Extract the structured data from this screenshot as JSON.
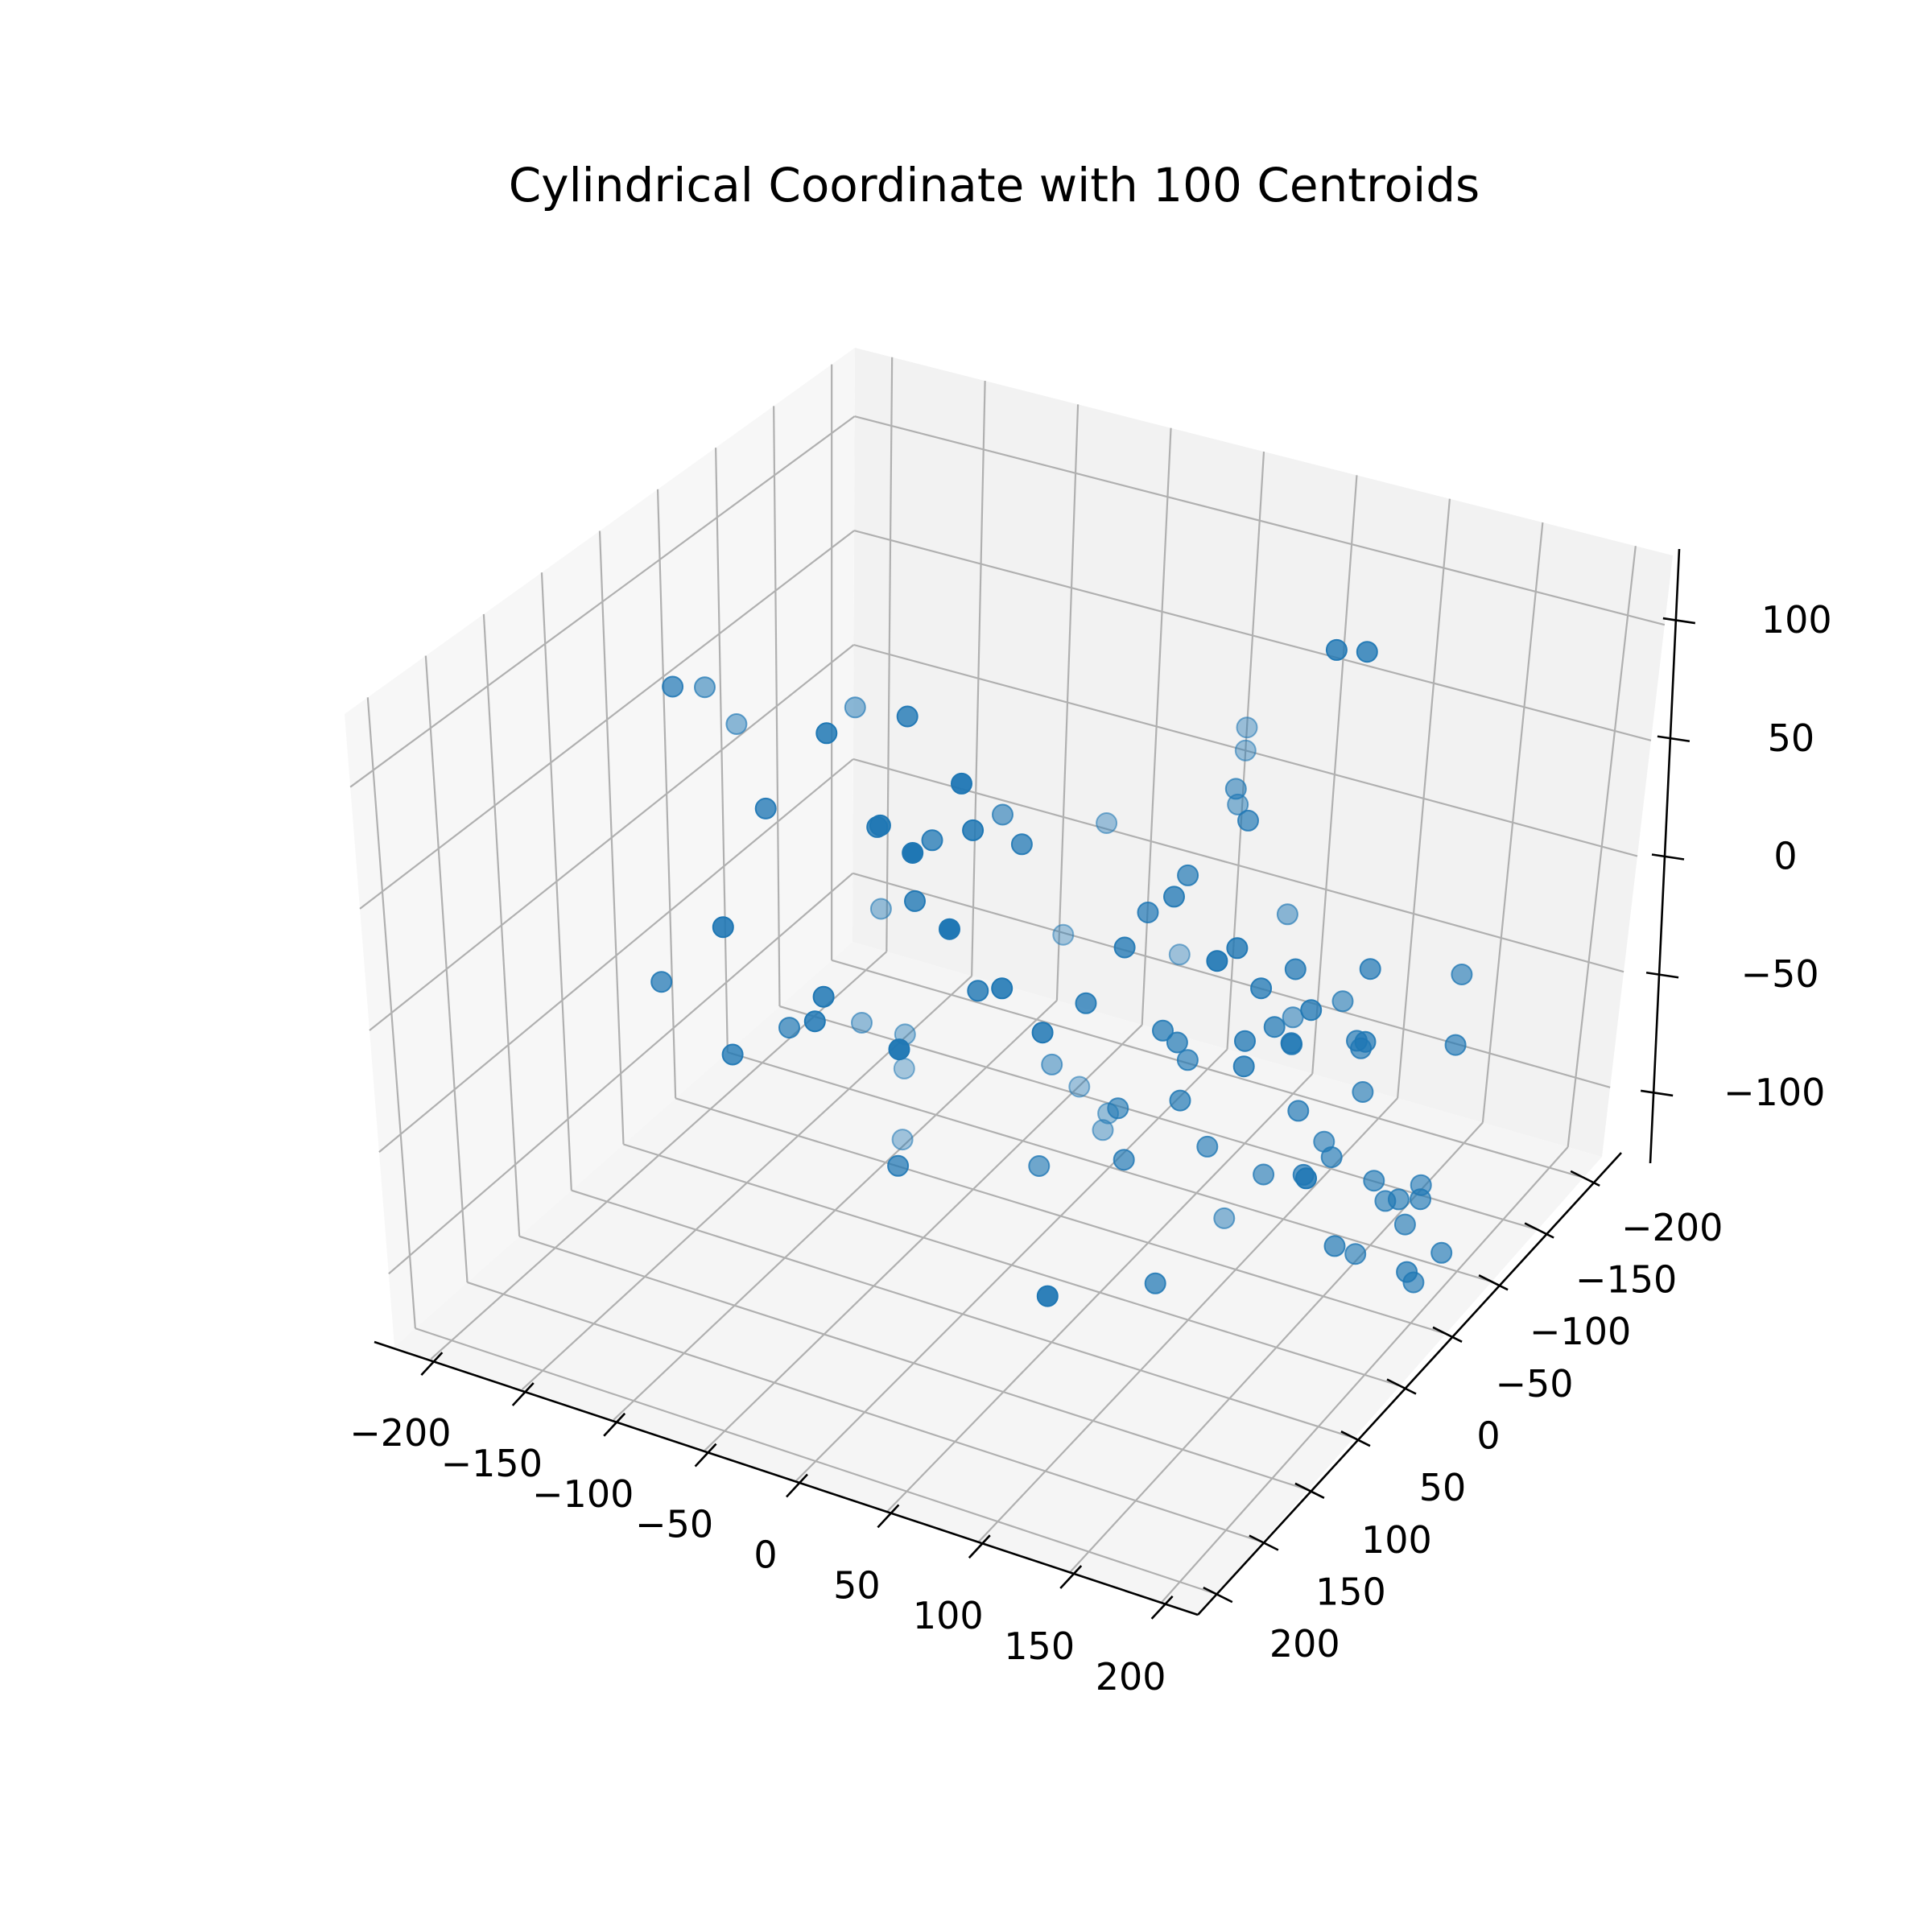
{
  "chart_data": {
    "type": "scatter",
    "projection": "3d",
    "title": "Cylindrical Coordinate with 100 Centroids",
    "xlabel": "",
    "ylabel": "",
    "zlabel": "",
    "xlim": [
      -220,
      220
    ],
    "ylim": [
      -220,
      220
    ],
    "zlim": [
      -130,
      130
    ],
    "xticks": [
      "−200",
      "−150",
      "−100",
      "−50",
      "0",
      "50",
      "100",
      "150",
      "200"
    ],
    "yticks": [
      "−200",
      "−150",
      "−100",
      "−50",
      "0",
      "50",
      "100",
      "150",
      "200"
    ],
    "zticks": [
      "−100",
      "−50",
      "0",
      "50",
      "100"
    ],
    "grid": true,
    "legend": false,
    "marker_color": "#1f77b4",
    "pane_colors": {
      "back": "#f2f2f2",
      "side": "#f7f7f7",
      "floor": "#f5f5f5",
      "grid": "#b0b0b0"
    },
    "series": [
      {
        "x": [
          -110,
          -18,
          15,
          32,
          58,
          55,
          -5,
          65,
          -142,
          -60,
          145,
          140,
          -20,
          -25,
          132,
          75,
          100,
          -150,
          -10,
          110,
          75,
          60,
          50,
          -40,
          150,
          125,
          115,
          -5,
          -110,
          15,
          50,
          -10,
          80,
          45,
          110,
          40,
          60,
          -70,
          20,
          55,
          -30,
          60,
          100,
          -80,
          -30,
          110,
          60,
          -40,
          50,
          -50,
          0,
          -110,
          -75,
          135,
          105,
          100,
          120,
          120,
          60,
          -118,
          25,
          40,
          0,
          -120,
          60,
          40,
          -25,
          -125,
          35,
          20,
          130,
          150,
          140,
          90,
          55,
          60,
          100,
          110,
          -10,
          -130,
          120,
          -60,
          -40,
          72,
          130,
          120,
          130,
          140,
          150,
          105,
          110,
          90,
          -125,
          130,
          120,
          110,
          150,
          140,
          25,
          -40
        ],
        "y": [
          120,
          140,
          150,
          95,
          150,
          190,
          90,
          175,
          40,
          125,
          -70,
          -50,
          145,
          145,
          40,
          -90,
          -50,
          0,
          110,
          -80,
          -20,
          -60,
          -40,
          200,
          -25,
          -70,
          -70,
          85,
          140,
          20,
          100,
          60,
          110,
          10,
          -20,
          180,
          -40,
          145,
          70,
          70,
          60,
          0,
          -80,
          75,
          -40,
          -80,
          -55,
          -110,
          -85,
          -175,
          -220,
          -40,
          -180,
          -110,
          -55,
          -50,
          -130,
          -135,
          -60,
          -100,
          -170,
          -140,
          -220,
          -80,
          -175,
          -200,
          -210,
          -70,
          -50,
          -70,
          -120,
          -180,
          -200,
          -170,
          -100,
          -40,
          -110,
          -100,
          -45,
          -120,
          -120,
          -175,
          -170,
          -130,
          -170,
          -160,
          -195,
          -175,
          -145,
          -140,
          -160,
          -160,
          -110,
          -180,
          -175,
          -165,
          -185,
          -175,
          -180,
          -165
        ],
        "z": [
          120,
          118,
          90,
          75,
          110,
          95,
          112,
          65,
          90,
          80,
          115,
          120,
          20,
          10,
          25,
          30,
          -40,
          60,
          75,
          -20,
          22,
          15,
          5,
          60,
          -75,
          -30,
          -45,
          40,
          10,
          45,
          20,
          55,
          -85,
          -15,
          8,
          20,
          -40,
          -10,
          5,
          -5,
          -75,
          6,
          -45,
          -25,
          30,
          -50,
          -50,
          -100,
          -70,
          -25,
          10,
          60,
          -80,
          -55,
          -20,
          -50,
          -65,
          -70,
          -75,
          -100,
          0,
          20,
          0,
          -40,
          -85,
          -55,
          -90,
          -85,
          -100,
          -90,
          -30,
          -80,
          -60,
          -70,
          -110,
          -140,
          -90,
          -110,
          -110,
          -125,
          -145,
          -140,
          -145,
          -130,
          -145,
          -135,
          -150,
          -145,
          -160,
          -120,
          -100,
          -125,
          -150,
          -160,
          -150,
          -170,
          -170,
          -180,
          -180,
          -150
        ]
      }
    ]
  }
}
